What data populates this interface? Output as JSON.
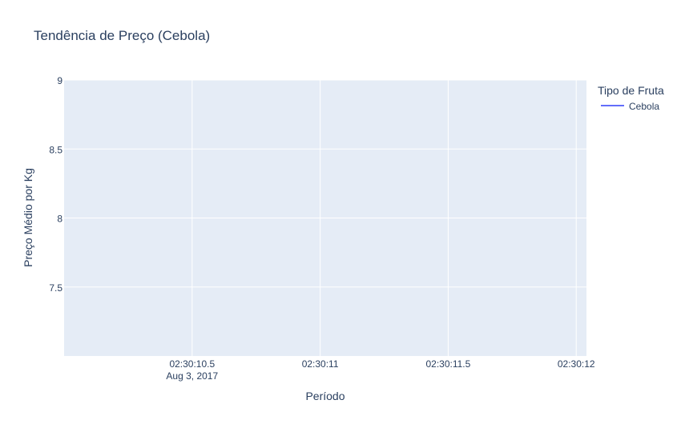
{
  "chart_data": {
    "type": "line",
    "title": "Tendência de Preço (Cebola)",
    "xlabel": "Período",
    "ylabel": "Preço Médio por Kg",
    "y_ticks": [
      {
        "value": 7.5,
        "label": "7.5"
      },
      {
        "value": 8,
        "label": "8"
      },
      {
        "value": 8.5,
        "label": "8.5"
      },
      {
        "value": 9,
        "label": "9"
      }
    ],
    "ylim": [
      7.0,
      9.0
    ],
    "x_ticks": [
      {
        "value": 0.5,
        "label": "02:30:10.5",
        "sublabel": "Aug 3, 2017"
      },
      {
        "value": 1.0,
        "label": "02:30:11",
        "sublabel": ""
      },
      {
        "value": 1.5,
        "label": "02:30:11.5",
        "sublabel": ""
      },
      {
        "value": 2.0,
        "label": "02:30:12",
        "sublabel": ""
      }
    ],
    "xlim": [
      0.0,
      2.04
    ],
    "grid": true,
    "legend": {
      "title": "Tipo de Fruta",
      "position": "top-right"
    },
    "series": [
      {
        "name": "Cebola",
        "color": "#636efa",
        "x": [],
        "y": []
      }
    ],
    "colors": {
      "plot_background": "#e5ecf6",
      "grid": "#ffffff",
      "text": "#2a3f5f"
    }
  }
}
